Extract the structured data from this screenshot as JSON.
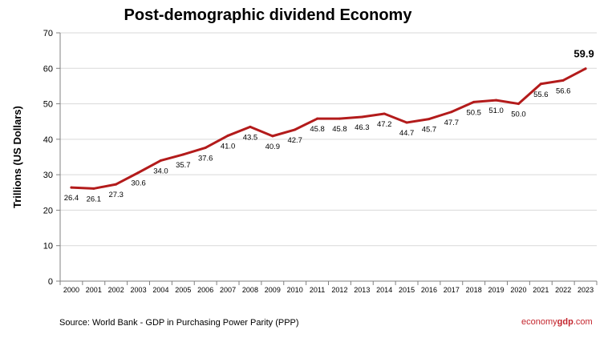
{
  "title": "Post-demographic dividend Economy",
  "ylabel": "Trillions (US Dollars)",
  "source": "Source: World Bank - GDP in Purchasing Power Parity (PPP)",
  "brand": {
    "part1": "economy",
    "part2": "gdp",
    "part3": ".com"
  },
  "colors": {
    "line": "#b31b1b",
    "grid": "#d9d9d9",
    "axis": "#808080"
  },
  "chart_data": {
    "type": "line",
    "title": "Post-demographic dividend Economy",
    "xlabel": "",
    "ylabel": "Trillions (US Dollars)",
    "ylim": [
      0,
      70
    ],
    "yticks": [
      0,
      10,
      20,
      30,
      40,
      50,
      60,
      70
    ],
    "grid": true,
    "categories": [
      "2000",
      "2001",
      "2002",
      "2003",
      "2004",
      "2005",
      "2006",
      "2007",
      "2008",
      "2009",
      "2010",
      "2011",
      "2012",
      "2013",
      "2014",
      "2015",
      "2016",
      "2017",
      "2018",
      "2019",
      "2020",
      "2021",
      "2022",
      "2023"
    ],
    "series": [
      {
        "name": "",
        "values": [
          26.4,
          26.1,
          27.3,
          30.6,
          34.0,
          35.7,
          37.6,
          41.0,
          43.5,
          40.9,
          42.7,
          45.8,
          45.8,
          46.3,
          47.2,
          44.7,
          45.7,
          47.7,
          50.5,
          51.0,
          50.0,
          55.6,
          56.6,
          59.9
        ],
        "labels": [
          "26.4",
          "26.1",
          "27.3",
          "30.6",
          "34.0",
          "35.7",
          "37.6",
          "41.0",
          "43.5",
          "40.9",
          "42.7",
          "45.8",
          "45.8",
          "46.3",
          "47.2",
          "44.7",
          "45.7",
          "47.7",
          "50.5",
          "51.0",
          "50.0",
          "55.6",
          "56.6",
          "59.9"
        ]
      }
    ]
  }
}
